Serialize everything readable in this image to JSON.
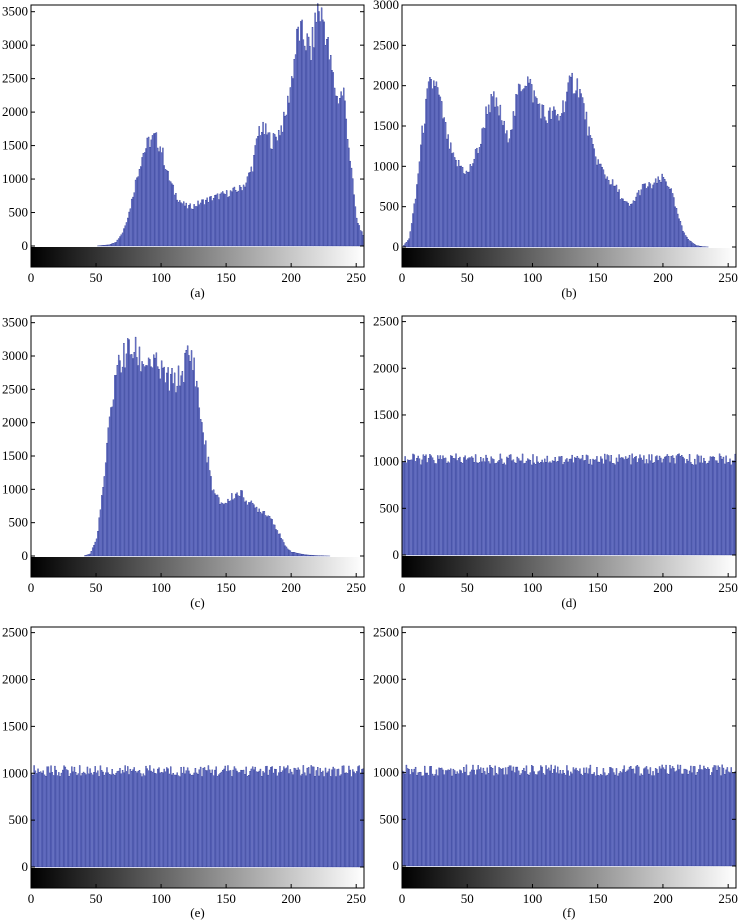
{
  "figure": {
    "panels": [
      {
        "caption": "(a)"
      },
      {
        "caption": "(b)"
      },
      {
        "caption": "(c)"
      },
      {
        "caption": "(d)"
      },
      {
        "caption": "(e)"
      },
      {
        "caption": "(f)"
      }
    ]
  },
  "colors": {
    "bar_fill": "#7c85d4",
    "bar_edge": "#1f2c8c",
    "axis": "#000000",
    "background": "#ffffff"
  },
  "chart_data": [
    {
      "type": "bar",
      "caption": "(a)",
      "xlim": [
        0,
        255
      ],
      "ylim": [
        -260,
        3600
      ],
      "xticks": [
        0,
        50,
        100,
        150,
        200,
        250
      ],
      "yticks": [
        0,
        500,
        1000,
        1500,
        2000,
        2500,
        3000,
        3500
      ],
      "grayscale_colorbar": true,
      "series": [
        {
          "x": [
            0,
            50,
            60,
            65,
            70,
            75,
            80,
            85,
            90,
            95,
            100,
            105,
            110,
            115,
            120,
            125,
            130,
            140,
            150,
            160,
            165,
            170,
            175,
            180,
            185,
            190,
            195,
            200,
            205,
            210,
            215,
            220,
            225,
            230,
            235,
            240,
            245,
            250,
            255
          ],
          "y": [
            0,
            0,
            20,
            60,
            200,
            500,
            950,
            1350,
            1550,
            1620,
            1450,
            1050,
            800,
            650,
            580,
            600,
            650,
            720,
            780,
            850,
            950,
            1200,
            1750,
            1700,
            1550,
            1700,
            1900,
            2500,
            3200,
            3100,
            2900,
            3550,
            3350,
            2700,
            2200,
            2300,
            1300,
            400,
            150
          ]
        }
      ]
    },
    {
      "type": "bar",
      "caption": "(b)",
      "xlim": [
        0,
        255
      ],
      "ylim": [
        -200,
        3000
      ],
      "xticks": [
        0,
        50,
        100,
        150,
        200,
        250
      ],
      "yticks": [
        0,
        500,
        1000,
        1500,
        2000,
        2500,
        3000
      ],
      "grayscale_colorbar": true,
      "series": [
        {
          "x": [
            0,
            5,
            10,
            15,
            20,
            25,
            30,
            35,
            40,
            45,
            50,
            55,
            60,
            65,
            70,
            75,
            80,
            85,
            90,
            95,
            100,
            105,
            110,
            115,
            120,
            125,
            130,
            135,
            140,
            145,
            150,
            155,
            160,
            165,
            170,
            175,
            180,
            185,
            190,
            195,
            200,
            205,
            210,
            215,
            220,
            225,
            230,
            235,
            240,
            255
          ],
          "y": [
            0,
            100,
            600,
            1400,
            1950,
            2050,
            1700,
            1300,
            1050,
            1000,
            900,
            1100,
            1300,
            1750,
            1800,
            1650,
            1350,
            1600,
            2000,
            2100,
            1900,
            1750,
            1600,
            1650,
            1600,
            1850,
            2050,
            2000,
            1650,
            1250,
            1050,
            900,
            800,
            700,
            550,
            500,
            650,
            750,
            750,
            800,
            850,
            750,
            450,
            200,
            80,
            20,
            5,
            0,
            0,
            0
          ]
        }
      ]
    },
    {
      "type": "bar",
      "caption": "(c)",
      "xlim": [
        0,
        255
      ],
      "ylim": [
        -260,
        3600
      ],
      "xticks": [
        0,
        50,
        100,
        150,
        200,
        250
      ],
      "yticks": [
        0,
        500,
        1000,
        1500,
        2000,
        2500,
        3000,
        3500
      ],
      "grayscale_colorbar": true,
      "series": [
        {
          "x": [
            0,
            40,
            45,
            50,
            55,
            60,
            65,
            70,
            75,
            80,
            85,
            90,
            95,
            100,
            105,
            110,
            115,
            120,
            125,
            130,
            135,
            140,
            145,
            150,
            155,
            160,
            165,
            170,
            175,
            180,
            185,
            190,
            195,
            200,
            210,
            220,
            230,
            255
          ],
          "y": [
            0,
            0,
            30,
            250,
            1000,
            2000,
            2800,
            2950,
            3100,
            3050,
            2900,
            2950,
            2850,
            2750,
            2650,
            2600,
            2700,
            3000,
            2900,
            2100,
            1500,
            950,
            800,
            800,
            900,
            950,
            850,
            750,
            700,
            650,
            550,
            350,
            150,
            60,
            20,
            5,
            0,
            0
          ]
        }
      ]
    },
    {
      "type": "bar",
      "caption": "(d)",
      "xlim": [
        0,
        255
      ],
      "ylim": [
        -200,
        2560
      ],
      "xticks": [
        0,
        50,
        100,
        150,
        200,
        250
      ],
      "yticks": [
        0,
        500,
        1000,
        1500,
        2000,
        2500
      ],
      "grayscale_colorbar": true,
      "series": [
        {
          "x": [
            0,
            255
          ],
          "y": [
            1024,
            1024
          ]
        }
      ]
    },
    {
      "type": "bar",
      "caption": "(e)",
      "xlim": [
        0,
        255
      ],
      "ylim": [
        -200,
        2560
      ],
      "xticks": [
        0,
        50,
        100,
        150,
        200,
        250
      ],
      "yticks": [
        0,
        500,
        1000,
        1500,
        2000,
        2500
      ],
      "grayscale_colorbar": true,
      "series": [
        {
          "x": [
            0,
            255
          ],
          "y": [
            1024,
            1024
          ]
        }
      ]
    },
    {
      "type": "bar",
      "caption": "(f)",
      "xlim": [
        0,
        255
      ],
      "ylim": [
        -200,
        2560
      ],
      "xticks": [
        0,
        50,
        100,
        150,
        200,
        250
      ],
      "yticks": [
        0,
        500,
        1000,
        1500,
        2000,
        2500
      ],
      "grayscale_colorbar": true,
      "series": [
        {
          "x": [
            0,
            255
          ],
          "y": [
            1024,
            1024
          ]
        }
      ]
    }
  ]
}
